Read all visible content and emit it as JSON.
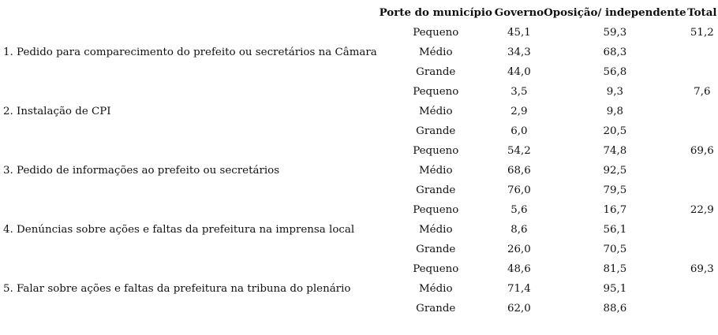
{
  "table": {
    "headers": {
      "item": "",
      "porte": "Porte do município",
      "governo": "Governo",
      "oposicao": "Oposição/ independente",
      "total": "Total"
    },
    "groups": [
      {
        "label": "1. Pedido para comparecimento do prefeito ou secretários na Câmara",
        "total": "51,2",
        "rows": [
          {
            "porte": "Pequeno",
            "governo": "45,1",
            "oposicao": "59,3"
          },
          {
            "porte": "Médio",
            "governo": "34,3",
            "oposicao": "68,3"
          },
          {
            "porte": "Grande",
            "governo": "44,0",
            "oposicao": "56,8"
          }
        ]
      },
      {
        "label": "2. Instalação de CPI",
        "total": "7,6",
        "rows": [
          {
            "porte": "Pequeno",
            "governo": "3,5",
            "oposicao": "9,3"
          },
          {
            "porte": "Médio",
            "governo": "2,9",
            "oposicao": "9,8"
          },
          {
            "porte": "Grande",
            "governo": "6,0",
            "oposicao": "20,5"
          }
        ]
      },
      {
        "label": "3. Pedido de informações ao prefeito ou secretários",
        "total": "69,6",
        "rows": [
          {
            "porte": "Pequeno",
            "governo": "54,2",
            "oposicao": "74,8"
          },
          {
            "porte": "Médio",
            "governo": "68,6",
            "oposicao": "92,5"
          },
          {
            "porte": "Grande",
            "governo": "76,0",
            "oposicao": "79,5"
          }
        ]
      },
      {
        "label": "4. Denúncias sobre ações e faltas da prefeitura na imprensa local",
        "total": "22,9",
        "rows": [
          {
            "porte": "Pequeno",
            "governo": "5,6",
            "oposicao": "16,7"
          },
          {
            "porte": "Médio",
            "governo": "8,6",
            "oposicao": "56,1"
          },
          {
            "porte": "Grande",
            "governo": "26,0",
            "oposicao": "70,5"
          }
        ]
      },
      {
        "label": "5. Falar sobre ações e faltas da prefeitura na tribuna do plenário",
        "total": "69,3",
        "rows": [
          {
            "porte": "Pequeno",
            "governo": "48,6",
            "oposicao": "81,5"
          },
          {
            "porte": "Médio",
            "governo": "71,4",
            "oposicao": "95,1"
          },
          {
            "porte": "Grande",
            "governo": "62,0",
            "oposicao": "88,6"
          }
        ]
      }
    ]
  }
}
